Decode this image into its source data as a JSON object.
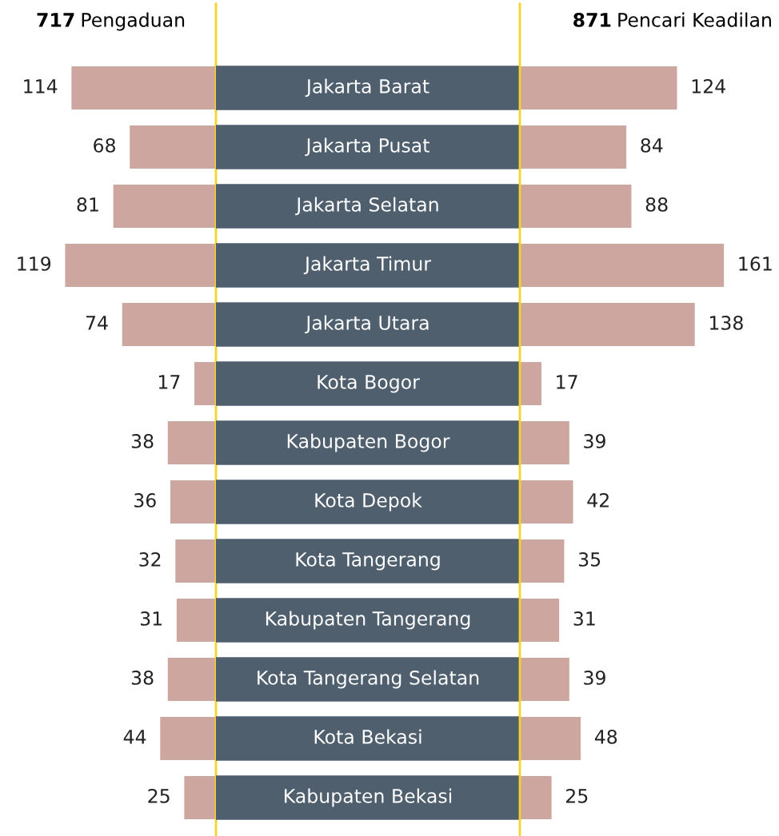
{
  "chart_data": [
    {
      "type": "bar",
      "orientation": "horizontal",
      "data_labels": true,
      "title": "717 Pengaduan",
      "categories": [
        "Jakarta Barat",
        "Jakarta Pusat",
        "Jakarta Selatan",
        "Jakarta Timur",
        "Jakarta Utara",
        "Kota Bogor",
        "Kabupaten Bogor",
        "Kota Depok",
        "Kota Tangerang",
        "Kabupaten Tangerang",
        "Kota Tangerang Selatan",
        "Kota Bekasi",
        "Kabupaten Bekasi"
      ],
      "series": [
        {
          "color": "#cca69f",
          "values": [
            114,
            68,
            81,
            119,
            74,
            17,
            38,
            36,
            32,
            31,
            38,
            44,
            25
          ]
        }
      ]
    },
    {
      "type": "bar",
      "orientation": "horizontal",
      "data_labels": true,
      "title": "871 Pencari Keadilan",
      "categories": [
        null,
        null,
        null,
        null,
        null,
        null,
        null,
        null,
        null,
        null,
        null,
        null,
        null
      ],
      "series": [
        {
          "color": "#cca69f",
          "values": [
            124,
            84,
            88,
            161,
            138,
            17,
            39,
            42,
            35,
            31,
            39,
            48,
            25
          ]
        }
      ]
    }
  ]
}
